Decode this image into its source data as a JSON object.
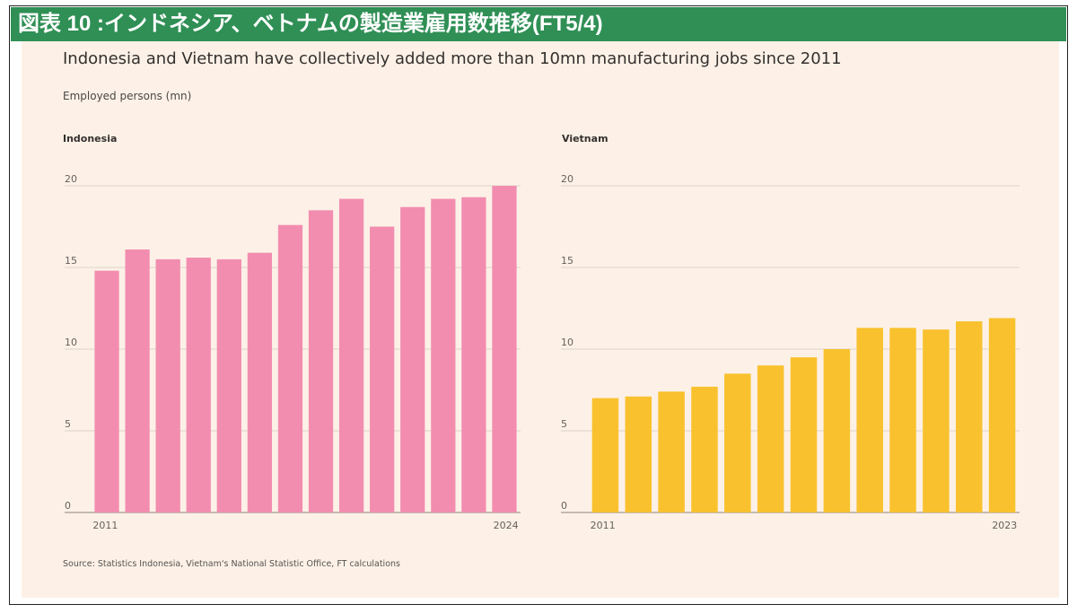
{
  "header": {
    "title": "図表 10 :インドネシア、ベトナムの製造業雇用数推移(FT5/4)"
  },
  "subtitle": "Indonesia and Vietnam have collectively added more than 10mn manufacturing jobs since 2011",
  "unit_label": "Employed persons (mn)",
  "source": "Source: Statistics Indonesia, Vietnam's National Statistic Office, FT calculations",
  "colors": {
    "header_bg": "#2f8f55",
    "panel_bg": "#fdf1e7",
    "indonesia_bar": "#f28db0",
    "vietnam_bar": "#f9c12e",
    "grid": "#dcd2c9"
  },
  "chart_data": [
    {
      "type": "bar",
      "title": "Indonesia",
      "x": [
        2011,
        2012,
        2013,
        2014,
        2015,
        2016,
        2017,
        2018,
        2019,
        2020,
        2021,
        2022,
        2023,
        2024
      ],
      "x_tick_labels": [
        "2011",
        "2024"
      ],
      "values": [
        14.8,
        16.1,
        15.5,
        15.6,
        15.5,
        15.9,
        17.6,
        18.5,
        19.2,
        17.5,
        18.7,
        19.2,
        19.3,
        20.0
      ],
      "ylim": [
        0,
        20
      ],
      "yticks": [
        0,
        5,
        10,
        15,
        20
      ],
      "grid": true
    },
    {
      "type": "bar",
      "title": "Vietnam",
      "x": [
        2011,
        2012,
        2013,
        2014,
        2015,
        2016,
        2017,
        2018,
        2019,
        2020,
        2021,
        2022,
        2023
      ],
      "x_tick_labels": [
        "2011",
        "2023"
      ],
      "values": [
        7.0,
        7.1,
        7.4,
        7.7,
        8.5,
        9.0,
        9.5,
        10.0,
        11.3,
        11.3,
        11.2,
        11.7,
        11.9
      ],
      "ylim": [
        0,
        20
      ],
      "yticks": [
        0,
        5,
        10,
        15,
        20
      ],
      "grid": true
    }
  ]
}
